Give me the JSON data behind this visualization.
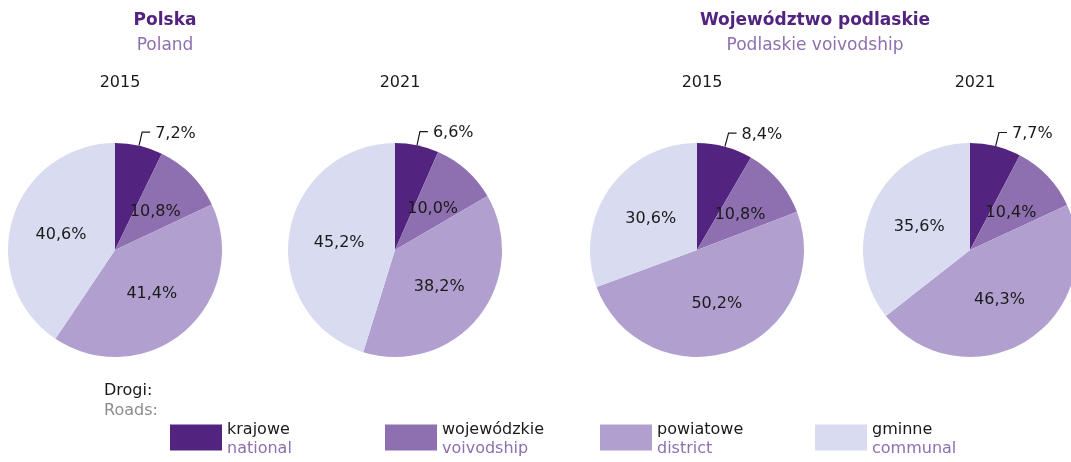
{
  "chart_data": [
    {
      "type": "pie",
      "title": "2015",
      "annotations": [
        "Polska",
        "Poland"
      ],
      "legend": "bottom",
      "legend_title": "Drogi:\nRoads:",
      "categories": [
        "krajowe\nnational",
        "wojewódzkie\nvoivodship",
        "powiatowe\ndistrict",
        "gminne\ncommunal"
      ],
      "values": [
        7.2,
        10.8,
        41.4,
        40.6
      ],
      "value_labels": [
        "7,2%",
        "10,8%",
        "41,4%",
        "40,6%"
      ],
      "colors": [
        "#53247f",
        "#8e6fb0",
        "#b1a0cf",
        "#d9dcf0"
      ]
    },
    {
      "type": "pie",
      "title": "2021",
      "values": [
        6.6,
        10.0,
        38.2,
        45.2
      ],
      "value_labels": [
        "6,6%",
        "10,0%",
        "38,2%",
        "45,2%"
      ],
      "colors": [
        "#53247f",
        "#8e6fb0",
        "#b1a0cf",
        "#d9dcf0"
      ]
    },
    {
      "type": "pie",
      "title": "2015",
      "annotations": [
        "Województwo podlaskie",
        "Podlaskie voivodship"
      ],
      "values": [
        8.4,
        10.8,
        50.2,
        30.6
      ],
      "value_labels": [
        "8,4%",
        "10,8%",
        "50,2%",
        "30,6%"
      ],
      "colors": [
        "#53247f",
        "#8e6fb0",
        "#b1a0cf",
        "#d9dcf0"
      ]
    },
    {
      "type": "pie",
      "title": "2021",
      "values": [
        7.7,
        10.4,
        46.3,
        35.6
      ],
      "value_labels": [
        "7,7%",
        "10,4%",
        "46,3%",
        "35,6%"
      ],
      "colors": [
        "#53247f",
        "#8e6fb0",
        "#b1a0cf",
        "#d9dcf0"
      ]
    }
  ]
}
